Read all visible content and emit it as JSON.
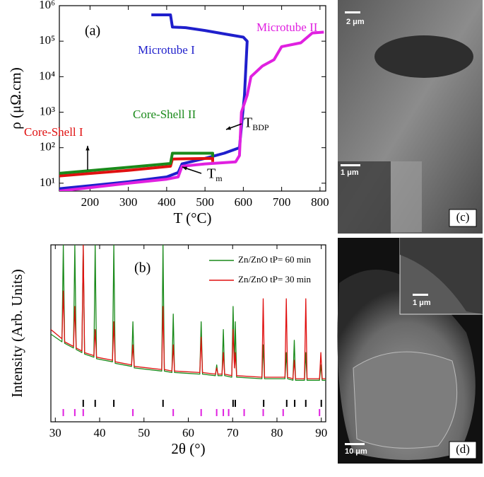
{
  "chart_data": [
    {
      "type": "line",
      "panel": "(a)",
      "xlabel": "T (°C)",
      "ylabel": "ρ (μΩ.cm)",
      "log_y": true,
      "xlim": [
        120,
        815
      ],
      "xticks": [
        200,
        300,
        400,
        500,
        600,
        700,
        800
      ],
      "ylim": [
        6,
        1000000
      ],
      "yticks": [
        {
          "value": 10,
          "label": "10¹"
        },
        {
          "value": 100,
          "label": "10²"
        },
        {
          "value": 1000,
          "label": "10³"
        },
        {
          "value": 10000,
          "label": "10⁴"
        },
        {
          "value": 100000,
          "label": "10⁵"
        },
        {
          "value": 1000000,
          "label": "10⁶"
        }
      ],
      "series": [
        {
          "name": "Microtube I",
          "color": "#1f1fcc",
          "x": [
            360,
            410,
            415,
            450,
            500,
            550,
            600,
            610,
            603,
            595,
            590,
            550,
            500,
            440,
            430,
            400,
            300,
            200,
            120
          ],
          "values": [
            550000,
            550000,
            250000,
            240000,
            200000,
            160000,
            130000,
            100000,
            3000,
            400,
            100,
            70,
            50,
            35,
            20,
            15,
            11,
            8.5,
            7
          ]
        },
        {
          "name": "Microtube II",
          "color": "#e020e0",
          "x": [
            120,
            200,
            300,
            400,
            430,
            440,
            500,
            580,
            590,
            595,
            610,
            620,
            650,
            680,
            700,
            750,
            780,
            810
          ],
          "values": [
            6,
            7.5,
            10,
            13,
            15,
            30,
            35,
            40,
            60,
            1000,
            3000,
            10000,
            20000,
            30000,
            70000,
            90000,
            170000,
            180000
          ]
        },
        {
          "name": "Core-Shell  I",
          "color": "#e01010",
          "x": [
            120,
            300,
            410,
            415,
            520,
            520
          ],
          "values": [
            16,
            23,
            30,
            48,
            50,
            40
          ]
        },
        {
          "name": "Core-Shell  II",
          "color": "#1a8a1a",
          "x": [
            120,
            300,
            410,
            415,
            520,
            520
          ],
          "values": [
            19,
            28,
            36,
            70,
            70,
            55
          ]
        }
      ],
      "annotations": [
        {
          "text": "(a)",
          "color": "#000000"
        },
        {
          "text": "T",
          "sub": "BDP",
          "color": "#000000"
        },
        {
          "text": "T",
          "sub": "m",
          "color": "#000000"
        }
      ]
    },
    {
      "type": "line",
      "panel": "(b)",
      "xlabel": "2θ (°)",
      "ylabel": "Intensity (Arb. Units)",
      "xlim": [
        29,
        91
      ],
      "xticks": [
        30,
        40,
        50,
        60,
        70,
        80,
        90
      ],
      "ylim": [
        -0.15,
        1
      ],
      "legend": "upper right",
      "x": [
        29,
        31.5,
        31.8,
        32.1,
        34.1,
        34.4,
        34.7,
        36.0,
        36.3,
        36.6,
        38.7,
        39.0,
        39.3,
        42.9,
        43.2,
        43.5,
        47.2,
        47.5,
        47.8,
        54.0,
        54.3,
        54.6,
        56.3,
        56.6,
        56.9,
        62.6,
        62.9,
        63.2,
        66.1,
        66.4,
        66.7,
        67.6,
        67.9,
        68.2,
        69.8,
        70.1,
        70.4,
        70.6,
        70.9,
        76.6,
        76.9,
        77.2,
        81.8,
        82.1,
        82.4,
        83.6,
        83.9,
        84.2,
        86.2,
        86.5,
        86.8,
        89.6,
        89.9,
        90.2,
        91
      ],
      "series": [
        {
          "name": "Zn/ZnO  tP= 60 min",
          "color": "#1a8a1a",
          "values": [
            0.42,
            0.37,
            1,
            0.36,
            0.33,
            1,
            0.32,
            0.3,
            1,
            0.29,
            0.27,
            1,
            0.26,
            0.24,
            1,
            0.23,
            0.21,
            0.5,
            0.2,
            0.18,
            1,
            0.18,
            0.17,
            0.55,
            0.17,
            0.16,
            0.5,
            0.16,
            0.15,
            0.22,
            0.15,
            0.15,
            0.45,
            0.15,
            0.14,
            0.6,
            0.2,
            0.5,
            0.14,
            0.13,
            0.35,
            0.13,
            0.13,
            0.3,
            0.13,
            0.12,
            0.38,
            0.12,
            0.12,
            0.3,
            0.12,
            0.12,
            0.22,
            0.12,
            0.12
          ]
        },
        {
          "name": "Zn/ZnO  tP= 30 min",
          "color": "#e01010",
          "values": [
            0.45,
            0.39,
            0.7,
            0.37,
            0.34,
            0.6,
            0.33,
            0.31,
            1,
            0.3,
            0.28,
            0.45,
            0.27,
            0.25,
            0.5,
            0.24,
            0.22,
            0.35,
            0.21,
            0.19,
            0.6,
            0.19,
            0.18,
            0.35,
            0.18,
            0.17,
            0.4,
            0.17,
            0.16,
            0.2,
            0.16,
            0.16,
            0.3,
            0.16,
            0.15,
            0.45,
            0.2,
            0.3,
            0.15,
            0.14,
            0.65,
            0.14,
            0.14,
            0.65,
            0.14,
            0.13,
            0.25,
            0.13,
            0.13,
            0.65,
            0.13,
            0.13,
            0.3,
            0.13,
            0.13
          ]
        }
      ],
      "reference_ticks": [
        {
          "color": "#000000",
          "value": -0.03,
          "x": [
            36.3,
            39.0,
            43.2,
            54.3,
            70.1,
            70.6,
            77.0,
            82.2,
            84.0,
            86.5,
            90.0
          ]
        },
        {
          "color": "#e020e0",
          "value": -0.09,
          "x": [
            31.8,
            34.4,
            36.3,
            47.5,
            56.6,
            62.9,
            66.4,
            67.9,
            69.1,
            72.6,
            76.9,
            81.4,
            89.6
          ]
        }
      ],
      "annotations": [
        {
          "text": "(b)",
          "color": "#000000"
        }
      ]
    }
  ],
  "images": [
    {
      "label": "(c)",
      "scale_bars": [
        "2 μm",
        "1 μm"
      ]
    },
    {
      "label": "(d)",
      "scale_bars": [
        "1 μm",
        "10 μm"
      ]
    }
  ]
}
